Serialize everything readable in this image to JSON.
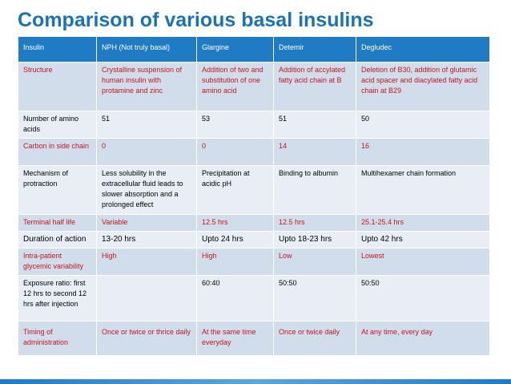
{
  "title": "Comparison of various basal insulins",
  "table": {
    "headers": [
      "Insulin",
      "NPH (Not truly basal)",
      "Glargine",
      "Detemir",
      "Degludec"
    ],
    "rows": [
      {
        "label": "Structure",
        "color": "red",
        "cells": [
          "Crystalline suspension of human insulin with protamine and zinc",
          "Addition of two and substitution of one amino acid",
          "Addition of accylated fatty acid chain at B",
          "Deletion of B30, addition of glutamic acid spacer and diacylated fatty acid chain at B29"
        ]
      },
      {
        "label": "Number of amino acids",
        "color": "black",
        "cells": [
          "51",
          "53",
          "51",
          "50"
        ]
      },
      {
        "label": "Carbon in side chain",
        "color": "red",
        "cells": [
          "0",
          "0",
          "14",
          "16"
        ]
      },
      {
        "label": "Mechanism of protraction",
        "color": "black",
        "cells": [
          "Less solubility in the extracellular fluid leads to slower absorption and a prolonged effect",
          "Precipitation at acidic pH",
          "Binding to albumin",
          "Multihexamer chain formation"
        ]
      },
      {
        "label": "Terminal half life",
        "color": "red",
        "cells": [
          "Variable",
          "12.5 hrs",
          "12.5 hrs",
          "25.1-25.4 hrs"
        ]
      },
      {
        "label": "Duration of action",
        "color": "black",
        "cells": [
          "13-20 hrs",
          "Upto 24 hrs",
          "Upto 18-23 hrs",
          "Upto 42 hrs"
        ]
      },
      {
        "label": "Intra-patient glycemic variability",
        "color": "red",
        "cells": [
          "High",
          "High",
          "Low",
          "Lowest"
        ]
      },
      {
        "label": "Exposure ratio: first 12 hrs to second 12 hrs after injection",
        "color": "black",
        "cells": [
          "",
          "60:40",
          "50:50",
          "50:50"
        ]
      },
      {
        "label": "Timing of administration",
        "color": "red",
        "cells": [
          "Once or twice or thrice daily",
          "At the same time everyday",
          "Once or twice daily",
          "At any time, every day"
        ]
      }
    ]
  },
  "colors": {
    "title": "#1a73b8",
    "header_bg": "#1f7bc4",
    "row_dark": "#d2ddec",
    "row_light": "#e9eef6",
    "red_text": "#c0171e"
  }
}
